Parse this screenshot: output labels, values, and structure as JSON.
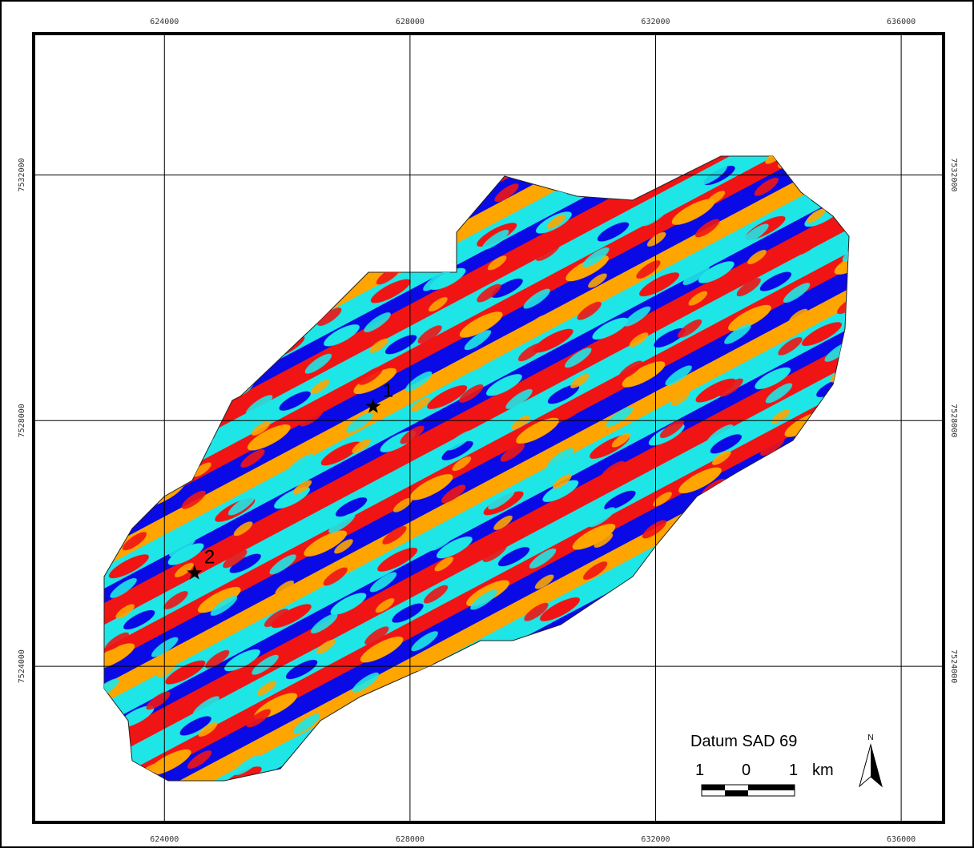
{
  "map": {
    "grid": {
      "xlim": [
        621870,
        636690
      ],
      "ylim": [
        7521460,
        7534300
      ],
      "xticks": [
        624000,
        628000,
        632000,
        636000
      ],
      "yticks": [
        7524000,
        7528000,
        7532000
      ]
    },
    "points": [
      {
        "label": "1",
        "x": 627400,
        "y": 7528230
      },
      {
        "label": "2",
        "x": 624490,
        "y": 7525520
      }
    ],
    "legend": {
      "datum": "Datum SAD 69",
      "scale_labels": [
        "1",
        "0",
        "1"
      ],
      "scale_unit": "km",
      "north": "N"
    }
  }
}
